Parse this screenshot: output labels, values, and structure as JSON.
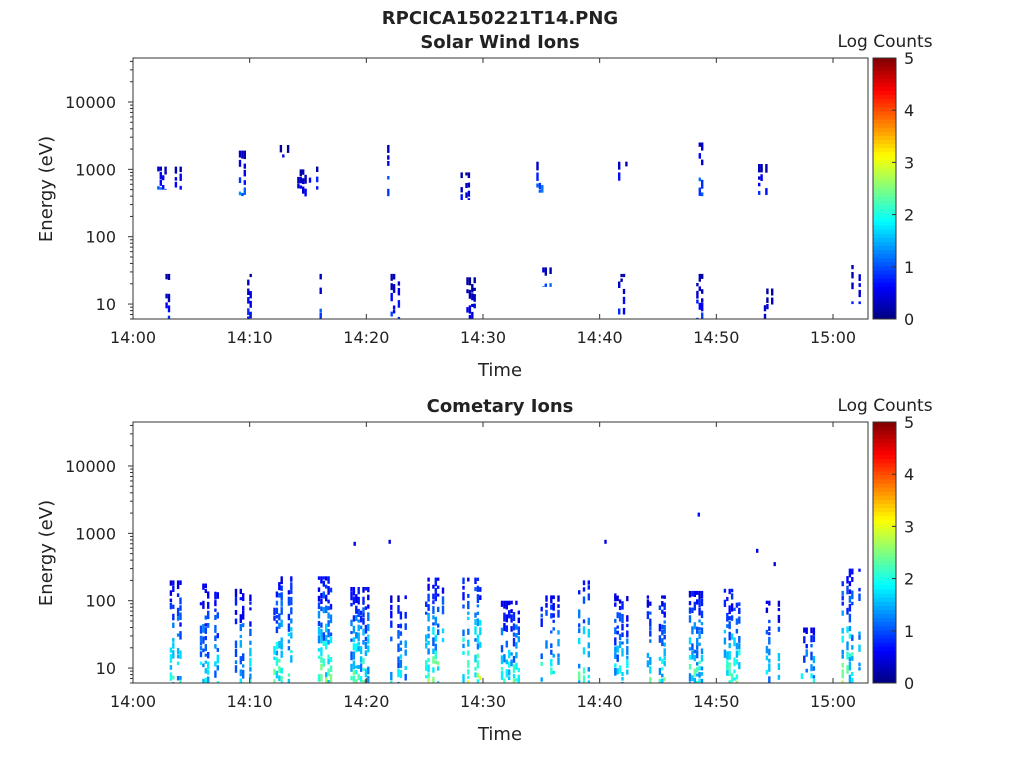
{
  "figure_title": "RPCICA150221T14.PNG",
  "colorbar": {
    "label": "Log Counts",
    "ticks": [
      "0",
      "1",
      "2",
      "3",
      "4",
      "5"
    ],
    "range": [
      0,
      5
    ],
    "colormap": "jet"
  },
  "chart_data": [
    {
      "type": "heatmap",
      "title": "Solar Wind Ions",
      "xlabel": "Time",
      "ylabel": "Energy (eV)",
      "x_ticks": [
        "14:00",
        "14:10",
        "14:20",
        "14:30",
        "14:40",
        "14:50",
        "15:00"
      ],
      "y_ticks": [
        "10",
        "100",
        "1000",
        "10000"
      ],
      "y_scale": "log",
      "ylim": [
        6,
        45000
      ],
      "xlim": [
        "14:00",
        "15:03"
      ],
      "grid": false,
      "bursts": [
        {
          "t": "14:02.5",
          "e_lo": 500,
          "e_hi": 1100,
          "v": 0.9
        },
        {
          "t": "14:03.0",
          "e_lo": 6,
          "e_hi": 28,
          "v": 0.6
        },
        {
          "t": "14:04.0",
          "e_lo": 500,
          "e_hi": 1100,
          "v": 0.8
        },
        {
          "t": "14:09.5",
          "e_lo": 400,
          "e_hi": 1900,
          "v": 1.0
        },
        {
          "t": "14:10.0",
          "e_lo": 6,
          "e_hi": 28,
          "v": 0.7
        },
        {
          "t": "14:13.0",
          "e_lo": 1500,
          "e_hi": 2300,
          "v": 0.5
        },
        {
          "t": "14:14.5",
          "e_lo": 350,
          "e_hi": 1000,
          "v": 0.6
        },
        {
          "t": "14:15.5",
          "e_lo": 500,
          "e_hi": 1100,
          "v": 0.9
        },
        {
          "t": "14:16.0",
          "e_lo": 6,
          "e_hi": 28,
          "v": 0.9
        },
        {
          "t": "14:22.0",
          "e_lo": 400,
          "e_hi": 2300,
          "v": 1.0
        },
        {
          "t": "14:22.5",
          "e_lo": 6,
          "e_hi": 28,
          "v": 0.8
        },
        {
          "t": "14:28.5",
          "e_lo": 350,
          "e_hi": 900,
          "v": 0.6
        },
        {
          "t": "14:29.0",
          "e_lo": 6,
          "e_hi": 25,
          "v": 0.5
        },
        {
          "t": "14:35.0",
          "e_lo": 450,
          "e_hi": 1300,
          "v": 1.1
        },
        {
          "t": "14:35.5",
          "e_lo": 18,
          "e_hi": 35,
          "v": 1.0
        },
        {
          "t": "14:42.0",
          "e_lo": 450,
          "e_hi": 1300,
          "v": 1.0
        },
        {
          "t": "14:42.0",
          "e_lo": 7,
          "e_hi": 28,
          "v": 0.8
        },
        {
          "t": "14:48.5",
          "e_lo": 400,
          "e_hi": 2500,
          "v": 1.1
        },
        {
          "t": "14:48.5",
          "e_lo": 6,
          "e_hi": 28,
          "v": 0.7
        },
        {
          "t": "14:54.0",
          "e_lo": 400,
          "e_hi": 1200,
          "v": 0.8
        },
        {
          "t": "14:54.5",
          "e_lo": 6,
          "e_hi": 17,
          "v": 0.5
        },
        {
          "t": "15:02.0",
          "e_lo": 10,
          "e_hi": 38,
          "v": 0.6
        }
      ]
    },
    {
      "type": "heatmap",
      "title": "Cometary Ions",
      "xlabel": "Time",
      "ylabel": "Energy (eV)",
      "x_ticks": [
        "14:00",
        "14:10",
        "14:20",
        "14:30",
        "14:40",
        "14:50",
        "15:00"
      ],
      "y_ticks": [
        "10",
        "100",
        "1000",
        "10000"
      ],
      "y_scale": "log",
      "ylim": [
        6,
        45000
      ],
      "xlim": [
        "14:00",
        "15:03"
      ],
      "grid": false,
      "bursts": [
        {
          "t": "14:03.3",
          "e_lo": 6,
          "e_hi": 200,
          "v": 1.6
        },
        {
          "t": "14:06.5",
          "e_lo": 6,
          "e_hi": 180,
          "v": 1.5
        },
        {
          "t": "14:09.5",
          "e_lo": 6,
          "e_hi": 150,
          "v": 1.5
        },
        {
          "t": "14:12.8",
          "e_lo": 6,
          "e_hi": 230,
          "v": 1.9
        },
        {
          "t": "14:16.2",
          "e_lo": 6,
          "e_hi": 230,
          "v": 1.9
        },
        {
          "t": "14:19.4",
          "e_lo": 6,
          "e_hi": 160,
          "v": 1.8
        },
        {
          "t": "14:22.6",
          "e_lo": 6,
          "e_hi": 120,
          "v": 1.5
        },
        {
          "t": "14:25.8",
          "e_lo": 6,
          "e_hi": 220,
          "v": 2.0
        },
        {
          "t": "14:29.0",
          "e_lo": 6,
          "e_hi": 220,
          "v": 2.1
        },
        {
          "t": "14:32.3",
          "e_lo": 6,
          "e_hi": 100,
          "v": 1.7
        },
        {
          "t": "14:35.7",
          "e_lo": 6,
          "e_hi": 120,
          "v": 1.8
        },
        {
          "t": "14:38.5",
          "e_lo": 6,
          "e_hi": 200,
          "v": 1.9
        },
        {
          "t": "14:41.6",
          "e_lo": 6,
          "e_hi": 170,
          "v": 1.5
        },
        {
          "t": "14:44.8",
          "e_lo": 6,
          "e_hi": 120,
          "v": 1.8
        },
        {
          "t": "14:48.0",
          "e_lo": 6,
          "e_hi": 140,
          "v": 1.8
        },
        {
          "t": "14:51.2",
          "e_lo": 6,
          "e_hi": 150,
          "v": 1.9
        },
        {
          "t": "14:54.8",
          "e_lo": 6,
          "e_hi": 100,
          "v": 1.5
        },
        {
          "t": "14:58.0",
          "e_lo": 6,
          "e_hi": 40,
          "v": 1.6
        },
        {
          "t": "15:01.5",
          "e_lo": 6,
          "e_hi": 300,
          "v": 1.9
        }
      ],
      "sparse_points": [
        {
          "t": "14:19.0",
          "e": 700,
          "v": 0.5
        },
        {
          "t": "14:22.0",
          "e": 750,
          "v": 0.5
        },
        {
          "t": "14:40.5",
          "e": 750,
          "v": 0.5
        },
        {
          "t": "14:48.5",
          "e": 1900,
          "v": 0.7
        },
        {
          "t": "14:53.5",
          "e": 550,
          "v": 0.5
        },
        {
          "t": "14:55.0",
          "e": 350,
          "v": 0.5
        }
      ]
    }
  ]
}
